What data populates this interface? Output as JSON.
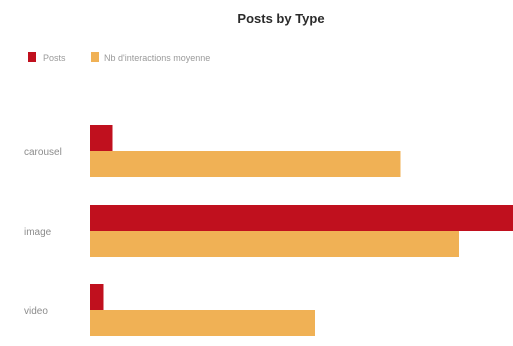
{
  "chart_data": {
    "type": "bar",
    "orientation": "horizontal",
    "title": "Posts by Type",
    "categories": [
      "carousel",
      "image",
      "video"
    ],
    "series": [
      {
        "name": "Posts",
        "color": "#c0101e",
        "values": [
          5,
          96,
          3
        ]
      },
      {
        "name": "Nb d'interactions moyenne",
        "color": "#f0b155",
        "values": [
          69,
          82,
          50
        ]
      }
    ],
    "xlim": [
      0,
      100
    ],
    "grid": false,
    "legend": "top-left",
    "xlabel": "",
    "ylabel": ""
  }
}
